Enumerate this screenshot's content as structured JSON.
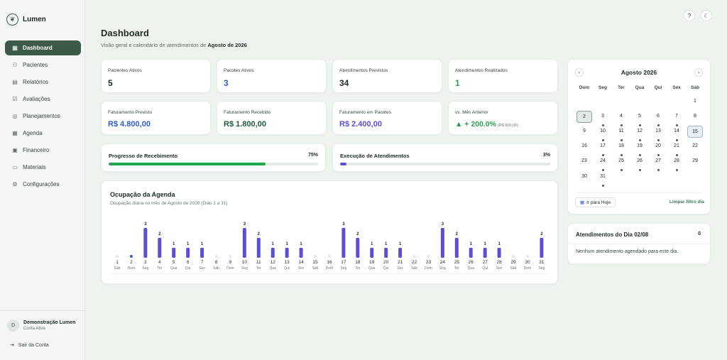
{
  "app": {
    "name": "Lumen",
    "logo_icon": "leaf-icon"
  },
  "sidebar": {
    "items": [
      {
        "label": "Dashboard",
        "icon": "grid-icon",
        "active": true
      },
      {
        "label": "Pacientes",
        "icon": "users-icon"
      },
      {
        "label": "Relatórios",
        "icon": "file-icon"
      },
      {
        "label": "Avaliações",
        "icon": "clipboard-check-icon"
      },
      {
        "label": "Planejamentos",
        "icon": "target-icon"
      },
      {
        "label": "Agenda",
        "icon": "calendar-icon"
      },
      {
        "label": "Financeiro",
        "icon": "wallet-icon"
      },
      {
        "label": "Materiais",
        "icon": "folder-icon"
      },
      {
        "label": "Configurações",
        "icon": "gear-icon"
      }
    ],
    "user": {
      "initial": "D",
      "name": "Demonstração Lumen",
      "status": "Conta Ativa"
    },
    "logout": "Sair da Conta"
  },
  "header": {
    "help_icon": "help-icon",
    "theme_icon": "moon-icon"
  },
  "page": {
    "title": "Dashboard",
    "subtitle_prefix": "Visão geral e calendário de atendimentos de ",
    "subtitle_month": "Agosto de 2026"
  },
  "stats": [
    {
      "label": "Pacientes Ativos",
      "value": "5",
      "color": "#1f2a23"
    },
    {
      "label": "Pacotes Ativos",
      "value": "3",
      "color": "#2f5bd3"
    },
    {
      "label": "Atendimentos Previstos",
      "value": "34",
      "color": "#1f2a23"
    },
    {
      "label": "Atendimentos Realizados",
      "value": "1",
      "color": "#2a9d50"
    },
    {
      "label": "Faturamento Previsto",
      "value": "R$ 4.800,00",
      "color": "#2f5bd3"
    },
    {
      "label": "Faturamento Recebido",
      "value": "R$ 1.800,00",
      "color": "#1f5a38"
    },
    {
      "label": "Faturamento em Pacotes",
      "value": "R$ 2.400,00",
      "color": "#5b4fd6"
    }
  ],
  "comparison": {
    "label": "vs. Mês Anterior",
    "value": "▲ + 200.0%",
    "note": "(R$ 600,00)",
    "color": "#2a9d50"
  },
  "progress": [
    {
      "label": "Progresso de Recebimento",
      "percent_text": "75%",
      "value": 0.75,
      "color": "#22a84b"
    },
    {
      "label": "Execução de Atendimentos",
      "percent_text": "3%",
      "value": 0.03,
      "color": "#5b4fd6"
    }
  ],
  "occupancy": {
    "title": "Ocupação da Agenda",
    "subtitle": "Ocupação diária no mês de Agosto de 2026 (Dias 1 a 31)"
  },
  "chart_data": {
    "type": "bar",
    "title": "Ocupação da Agenda",
    "subtitle": "Ocupação diária no mês de Agosto de 2026 (Dias 1 a 31)",
    "categories": [
      "1",
      "2",
      "3",
      "4",
      "5",
      "6",
      "7",
      "8",
      "9",
      "10",
      "11",
      "12",
      "13",
      "14",
      "15",
      "16",
      "17",
      "18",
      "19",
      "20",
      "21",
      "22",
      "23",
      "24",
      "25",
      "26",
      "27",
      "28",
      "29",
      "30",
      "31"
    ],
    "weekdays": [
      "Sáb",
      "Dom",
      "Seg",
      "Ter",
      "Qua",
      "Qui",
      "Sex",
      "Sáb",
      "Dom",
      "Seg",
      "Ter",
      "Qua",
      "Qui",
      "Sex",
      "Sáb",
      "Dom",
      "Seg",
      "Ter",
      "Qua",
      "Qui",
      "Sex",
      "Sáb",
      "Dom",
      "Seg",
      "Ter",
      "Qua",
      "Qui",
      "Sex",
      "Sáb",
      "Dom",
      "Seg"
    ],
    "values": [
      0,
      0,
      3,
      2,
      1,
      1,
      1,
      0,
      0,
      3,
      2,
      1,
      1,
      1,
      0,
      0,
      3,
      2,
      1,
      1,
      1,
      0,
      0,
      3,
      2,
      1,
      1,
      1,
      0,
      0,
      2
    ],
    "highlight_day": "2",
    "bar_color": "#5b4fd6",
    "empty_color": "#e3e7ee",
    "highlight_color": "#2f5bd3"
  },
  "calendar": {
    "month_label": "Agosto 2026",
    "prev_icon": "chevron-left-icon",
    "next_icon": "chevron-right-icon",
    "weekdays": [
      "Dom",
      "Seg",
      "Ter",
      "Qua",
      "Qui",
      "Sex",
      "Sáb"
    ],
    "start_offset": 6,
    "days_in_month": 31,
    "selected_day": 2,
    "today_day": 15,
    "days_with_events": [
      3,
      4,
      5,
      6,
      7,
      10,
      11,
      12,
      13,
      14,
      17,
      18,
      19,
      20,
      21,
      24,
      25,
      26,
      27,
      28,
      31
    ],
    "today_button": "Ir para Hoje",
    "today_button_icon": "calendar-icon",
    "clear_filter": "Limpar filtro dia"
  },
  "agenda": {
    "title": "Atendimentos do Dia 02/08",
    "count": "0",
    "empty": "Nenhum atendimento agendado para este dia."
  }
}
